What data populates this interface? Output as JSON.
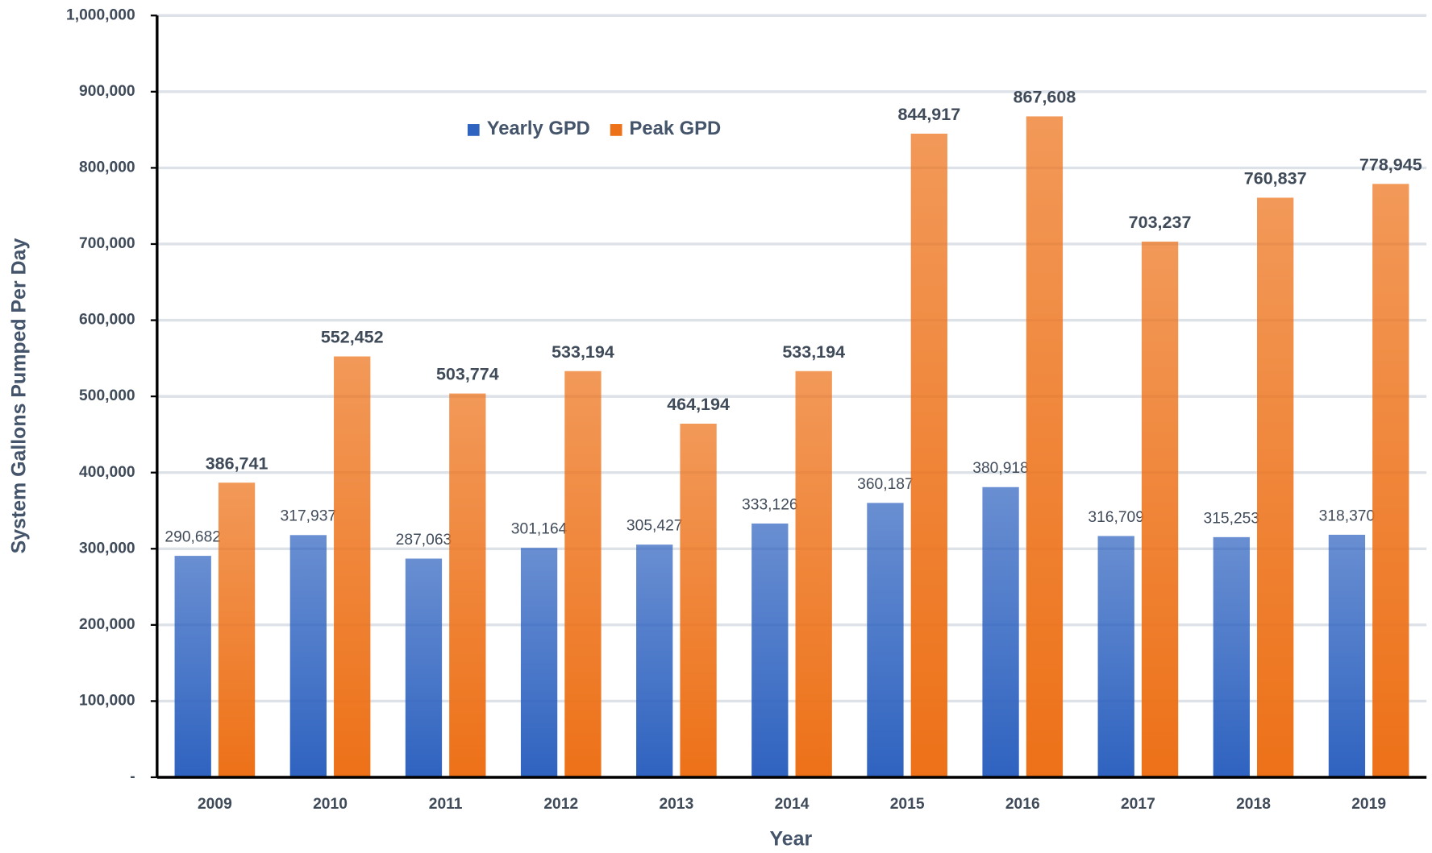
{
  "chart_data": {
    "type": "bar",
    "x_label": "Year",
    "y_label": "System Gallons Pumped Per Day",
    "categories": [
      "2009",
      "2010",
      "2011",
      "2012",
      "2013",
      "2014",
      "2015",
      "2016",
      "2017",
      "2018",
      "2019"
    ],
    "series": [
      {
        "name": "Yearly GPD",
        "color": "#2f63c0",
        "values": [
          290682,
          317937,
          287063,
          301164,
          305427,
          333126,
          360187,
          380918,
          316709,
          315253,
          318370
        ],
        "value_labels": [
          "290,682",
          "317,937",
          "287,063",
          "301,164",
          "305,427",
          "333,126",
          "360,187",
          "380,918",
          "316,709",
          "315,253",
          "318,370"
        ]
      },
      {
        "name": "Peak GPD",
        "color": "#ed7118",
        "values": [
          386741,
          552452,
          503774,
          533194,
          464194,
          533194,
          844917,
          867608,
          703237,
          760837,
          778945
        ],
        "value_labels": [
          "386,741",
          "552,452",
          "503,774",
          "533,194",
          "464,194",
          "533,194",
          "844,917",
          "867,608",
          "703,237",
          "760,837",
          "778,945"
        ]
      }
    ],
    "ylim": [
      0,
      1000000
    ],
    "yticks": [
      {
        "value": 0,
        "label": "-"
      },
      {
        "value": 100000,
        "label": "100,000"
      },
      {
        "value": 200000,
        "label": "200,000"
      },
      {
        "value": 300000,
        "label": "300,000"
      },
      {
        "value": 400000,
        "label": "400,000"
      },
      {
        "value": 500000,
        "label": "500,000"
      },
      {
        "value": 600000,
        "label": "600,000"
      },
      {
        "value": 700000,
        "label": "700,000"
      },
      {
        "value": 800000,
        "label": "800,000"
      },
      {
        "value": 900000,
        "label": "900,000"
      },
      {
        "value": 1000000,
        "label": "1,000,000"
      }
    ],
    "grid": true,
    "legend": "top"
  }
}
